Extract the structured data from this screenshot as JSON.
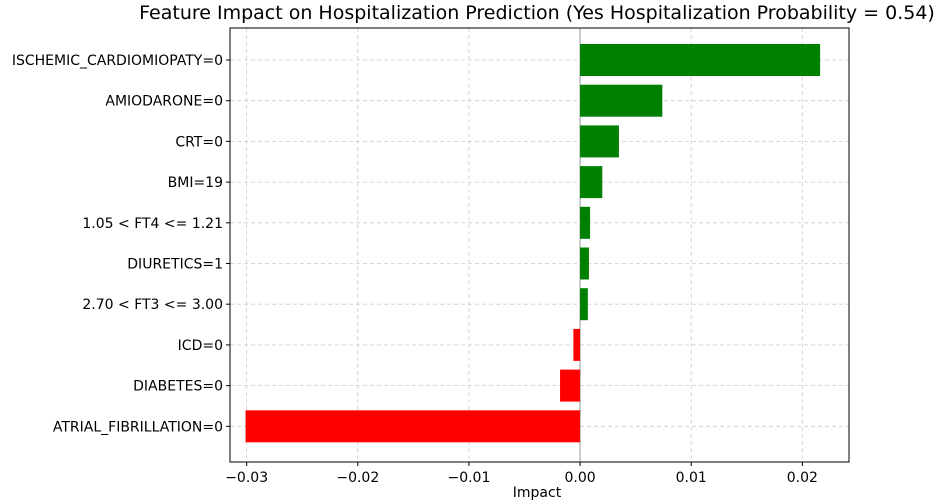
{
  "chart_data": {
    "type": "bar",
    "orientation": "horizontal",
    "title": "Feature Impact on Hospitalization Prediction (Yes Hospitalization Probability = 0.54)",
    "xlabel": "Impact",
    "ylabel": "",
    "categories": [
      "ISCHEMIC_CARDIOMIOPATY=0",
      "AMIODARONE=0",
      "CRT=0",
      "BMI=19",
      "1.05 < FT4 <= 1.21",
      "DIURETICS=1",
      "2.70 < FT3 <= 3.00",
      "ICD=0",
      "DIABETES=0",
      "ATRIAL_FIBRILLATION=0"
    ],
    "values": [
      0.0216,
      0.0074,
      0.0035,
      0.002,
      0.0009,
      0.0008,
      0.0007,
      -0.0006,
      -0.0018,
      -0.0301
    ],
    "xlim": [
      -0.0315,
      0.0242
    ],
    "xticks": [
      -0.03,
      -0.02,
      -0.01,
      0.0,
      0.01,
      0.02
    ],
    "xtick_labels": [
      "−0.03",
      "−0.02",
      "−0.01",
      "0.00",
      "0.01",
      "0.02"
    ],
    "colors": {
      "positive": "#008000",
      "negative": "#ff0000"
    },
    "grid": true,
    "zero_line": true
  }
}
